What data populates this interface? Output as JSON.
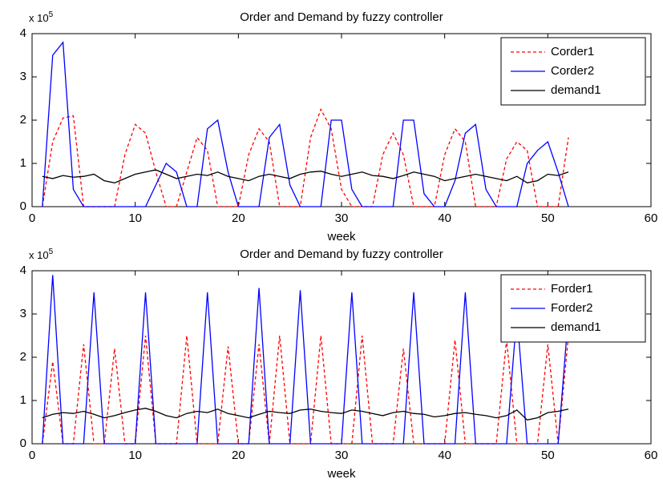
{
  "chart_data": [
    {
      "type": "line",
      "title": "Order and Demand by fuzzy controller",
      "xlabel": "week",
      "y_multiplier": "x 10",
      "y_multiplier_exponent": "5",
      "x": [
        1,
        2,
        3,
        4,
        5,
        6,
        7,
        8,
        9,
        10,
        11,
        12,
        13,
        14,
        15,
        16,
        17,
        18,
        19,
        20,
        21,
        22,
        23,
        24,
        25,
        26,
        27,
        28,
        29,
        30,
        31,
        32,
        33,
        34,
        35,
        36,
        37,
        38,
        39,
        40,
        41,
        42,
        43,
        44,
        45,
        46,
        47,
        48,
        49,
        50,
        51,
        52
      ],
      "series": [
        {
          "name": "Corder1",
          "color": "#ff0000",
          "linestyle": "dashed",
          "values": [
            0,
            1.5,
            2.05,
            2.1,
            0,
            0,
            0,
            0,
            1.2,
            1.9,
            1.7,
            0.8,
            0,
            0,
            0.8,
            1.6,
            1.3,
            0,
            0,
            0,
            1.2,
            1.8,
            1.5,
            0,
            0,
            0,
            1.6,
            2.25,
            1.8,
            0.4,
            0,
            0,
            0,
            1.2,
            1.7,
            1.2,
            0,
            0,
            0,
            1.2,
            1.8,
            1.5,
            0,
            0,
            0,
            1.1,
            1.5,
            1.3,
            0,
            0,
            0,
            1.6
          ]
        },
        {
          "name": "Corder2",
          "color": "#0000ff",
          "linestyle": "solid",
          "values": [
            0,
            3.5,
            3.8,
            0.4,
            0,
            0,
            0,
            0,
            0,
            0,
            0,
            0.5,
            1.0,
            0.8,
            0,
            0,
            1.8,
            2.0,
            0.8,
            0,
            0,
            0,
            1.6,
            1.9,
            0.5,
            0,
            0,
            0,
            2.0,
            2.0,
            0.4,
            0,
            0,
            0,
            0,
            2.0,
            2.0,
            0.3,
            0,
            0,
            0.6,
            1.7,
            1.9,
            0.4,
            0,
            0,
            0,
            1.0,
            1.3,
            1.5,
            0.8,
            0
          ]
        },
        {
          "name": "demand1",
          "color": "#000000",
          "linestyle": "solid",
          "values": [
            0.7,
            0.65,
            0.72,
            0.68,
            0.7,
            0.75,
            0.6,
            0.55,
            0.65,
            0.75,
            0.8,
            0.85,
            0.75,
            0.65,
            0.7,
            0.75,
            0.72,
            0.8,
            0.7,
            0.65,
            0.6,
            0.7,
            0.75,
            0.7,
            0.65,
            0.75,
            0.8,
            0.82,
            0.75,
            0.7,
            0.75,
            0.8,
            0.72,
            0.7,
            0.65,
            0.72,
            0.8,
            0.75,
            0.7,
            0.6,
            0.65,
            0.7,
            0.75,
            0.7,
            0.65,
            0.6,
            0.7,
            0.55,
            0.6,
            0.75,
            0.72,
            0.8
          ]
        }
      ],
      "xlim": [
        0,
        60
      ],
      "xticks": [
        0,
        10,
        20,
        30,
        40,
        50,
        60
      ],
      "ylim": [
        0,
        4
      ],
      "yticks": [
        0,
        1,
        2,
        3,
        4
      ],
      "legend": "upper right"
    },
    {
      "type": "line",
      "title": "Order and Demand by fuzzy controller",
      "xlabel": "week",
      "y_multiplier": "x 10",
      "y_multiplier_exponent": "5",
      "x": [
        1,
        2,
        3,
        4,
        5,
        6,
        7,
        8,
        9,
        10,
        11,
        12,
        13,
        14,
        15,
        16,
        17,
        18,
        19,
        20,
        21,
        22,
        23,
        24,
        25,
        26,
        27,
        28,
        29,
        30,
        31,
        32,
        33,
        34,
        35,
        36,
        37,
        38,
        39,
        40,
        41,
        42,
        43,
        44,
        45,
        46,
        47,
        48,
        49,
        50,
        51,
        52
      ],
      "series": [
        {
          "name": "Forder1",
          "color": "#ff0000",
          "linestyle": "dashed",
          "values": [
            0,
            1.9,
            0,
            0,
            2.3,
            0,
            0,
            2.2,
            0,
            0,
            2.5,
            0,
            0,
            0,
            2.5,
            0,
            0,
            0,
            2.25,
            0,
            0,
            2.3,
            0,
            2.5,
            0,
            0,
            0,
            2.5,
            0,
            0,
            0,
            2.5,
            0,
            0,
            0,
            2.2,
            0,
            0,
            0,
            0,
            2.4,
            0,
            0,
            0,
            0,
            2.4,
            0,
            0,
            0,
            2.3,
            0,
            2.5
          ]
        },
        {
          "name": "Forder2",
          "color": "#0000ff",
          "linestyle": "solid",
          "values": [
            0,
            3.9,
            0,
            0,
            0,
            3.5,
            0,
            0,
            0,
            0,
            3.5,
            0,
            0,
            0,
            0,
            0,
            3.5,
            0,
            0,
            0,
            0,
            3.6,
            0,
            0,
            0,
            3.55,
            0,
            0,
            0,
            0,
            3.5,
            0,
            0,
            0,
            0,
            0,
            3.5,
            0,
            0,
            0,
            0,
            3.5,
            0,
            0,
            0,
            0,
            3.0,
            0,
            0,
            0,
            0,
            3.0
          ]
        },
        {
          "name": "demand1",
          "color": "#000000",
          "linestyle": "solid",
          "values": [
            0.6,
            0.68,
            0.72,
            0.7,
            0.75,
            0.68,
            0.6,
            0.65,
            0.72,
            0.78,
            0.82,
            0.75,
            0.65,
            0.6,
            0.7,
            0.75,
            0.72,
            0.8,
            0.7,
            0.65,
            0.6,
            0.68,
            0.75,
            0.72,
            0.7,
            0.78,
            0.8,
            0.75,
            0.72,
            0.7,
            0.78,
            0.75,
            0.7,
            0.65,
            0.72,
            0.75,
            0.7,
            0.68,
            0.62,
            0.65,
            0.7,
            0.72,
            0.68,
            0.65,
            0.6,
            0.65,
            0.78,
            0.55,
            0.6,
            0.72,
            0.75,
            0.8
          ]
        }
      ],
      "xlim": [
        0,
        60
      ],
      "xticks": [
        0,
        10,
        20,
        30,
        40,
        50,
        60
      ],
      "ylim": [
        0,
        4
      ],
      "yticks": [
        0,
        1,
        2,
        3,
        4
      ],
      "legend": "upper right"
    }
  ]
}
